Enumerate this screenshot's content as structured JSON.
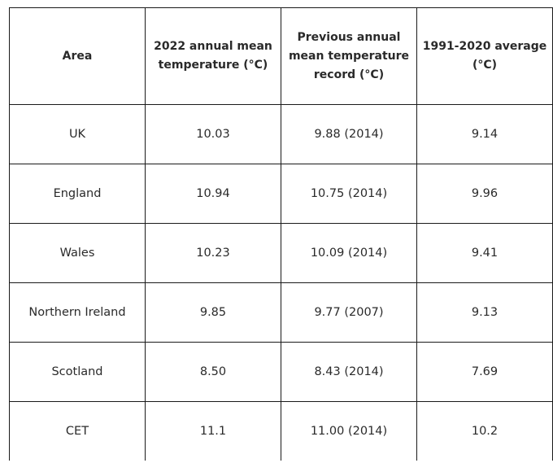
{
  "table": {
    "headers": [
      "Area",
      "2022 annual mean temperature (°C)",
      "Previous annual mean temperature record (°C)",
      "1991-2020 average (°C)"
    ],
    "rows": [
      [
        "UK",
        "10.03",
        "9.88 (2014)",
        "9.14"
      ],
      [
        "England",
        "10.94",
        "10.75 (2014)",
        "9.96"
      ],
      [
        "Wales",
        "10.23",
        "10.09 (2014)",
        "9.41"
      ],
      [
        "Northern Ireland",
        "9.85",
        "9.77 (2007)",
        "9.13"
      ],
      [
        "Scotland",
        "8.50",
        "8.43 (2014)",
        "7.69"
      ],
      [
        "CET",
        "11.1",
        "11.00 (2014)",
        "10.2"
      ]
    ]
  }
}
